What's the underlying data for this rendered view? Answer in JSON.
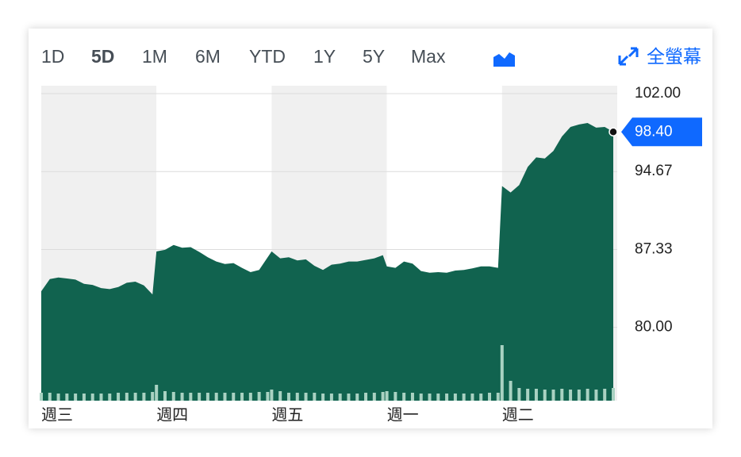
{
  "toolbar": {
    "ranges": [
      "1D",
      "5D",
      "1M",
      "6M",
      "YTD",
      "1Y",
      "5Y",
      "Max"
    ],
    "active": 1,
    "fullscreen": "全螢幕"
  },
  "chart_data": {
    "type": "area",
    "categories": [
      "週三",
      "週四",
      "週五",
      "週一",
      "週二"
    ],
    "values": [
      [
        83.4,
        84.55,
        84.7,
        84.6,
        84.5,
        84.1,
        84.0,
        83.7,
        83.6,
        83.8,
        84.2,
        84.3,
        83.95,
        83.1
      ],
      [
        87.15,
        87.3,
        87.75,
        87.5,
        87.55,
        87.1,
        86.6,
        86.2,
        85.97,
        86.05,
        85.6,
        85.2,
        85.4,
        86.6
      ],
      [
        87.15,
        86.5,
        86.6,
        86.3,
        86.4,
        85.8,
        85.4,
        85.9,
        86.0,
        86.2,
        86.2,
        86.35,
        86.5,
        86.8
      ],
      [
        85.74,
        85.6,
        86.2,
        86.0,
        85.3,
        85.15,
        85.2,
        85.15,
        85.35,
        85.4,
        85.55,
        85.74,
        85.74,
        85.6
      ],
      [
        93.3,
        92.7,
        93.4,
        95.1,
        96.0,
        95.9,
        96.6,
        97.97,
        98.87,
        99.1,
        99.24,
        98.8,
        98.87,
        98.4
      ]
    ],
    "volume": [
      [
        10,
        10,
        9,
        9,
        9,
        9,
        9,
        9,
        9,
        10,
        10,
        10,
        10,
        11
      ],
      [
        20,
        12,
        11,
        10,
        10,
        10,
        10,
        10,
        10,
        10,
        10,
        10,
        11,
        11
      ],
      [
        14,
        12,
        10,
        10,
        10,
        10,
        9,
        9,
        9,
        9,
        9,
        10,
        10,
        11
      ],
      [
        12,
        11,
        10,
        10,
        9,
        9,
        9,
        9,
        9,
        9,
        9,
        9,
        10,
        10
      ],
      [
        70,
        25,
        16,
        15,
        15,
        14,
        14,
        15,
        14,
        14,
        15,
        14,
        15,
        16
      ]
    ],
    "color": "#11634f",
    "volume_color": "#a9d2c2",
    "ylim": [
      73.1,
      102.75
    ],
    "yticks": [
      {
        "value": 80,
        "label": "80.00"
      },
      {
        "value": 87.33,
        "label": "87.33"
      },
      {
        "value": 94.67,
        "label": "94.67"
      },
      {
        "value": 102,
        "label": "102.00"
      }
    ],
    "last_price": {
      "value": 98.4,
      "label": "98.40"
    },
    "grid": true
  }
}
